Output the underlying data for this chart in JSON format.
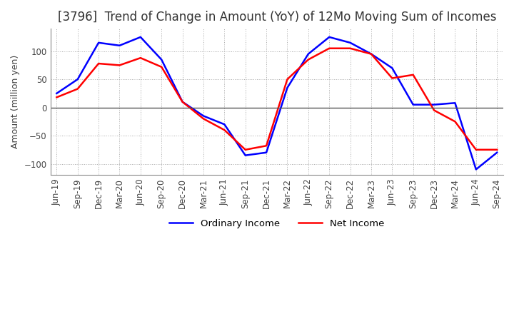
{
  "title": "[3796]  Trend of Change in Amount (YoY) of 12Mo Moving Sum of Incomes",
  "ylabel": "Amount (million yen)",
  "ylim": [
    -120,
    140
  ],
  "yticks": [
    -100,
    -50,
    0,
    50,
    100
  ],
  "ordinary_income_color": "#0000FF",
  "net_income_color": "#FF0000",
  "line_width": 1.8,
  "x_labels": [
    "Jun-19",
    "Sep-19",
    "Dec-19",
    "Mar-20",
    "Jun-20",
    "Sep-20",
    "Dec-20",
    "Mar-21",
    "Jun-21",
    "Sep-21",
    "Dec-21",
    "Mar-22",
    "Jun-22",
    "Sep-22",
    "Dec-22",
    "Mar-23",
    "Jun-23",
    "Sep-23",
    "Dec-23",
    "Mar-24",
    "Jun-24",
    "Sep-24"
  ],
  "ordinary_income": [
    25,
    50,
    115,
    110,
    125,
    85,
    10,
    -15,
    -30,
    -85,
    -80,
    35,
    95,
    125,
    115,
    95,
    70,
    5,
    5,
    8,
    -110,
    -80
  ],
  "net_income": [
    18,
    33,
    78,
    75,
    88,
    72,
    10,
    -20,
    -40,
    -75,
    -68,
    50,
    85,
    105,
    105,
    95,
    52,
    58,
    -5,
    -25,
    -75,
    -75
  ],
  "background_color": "#ffffff",
  "grid_color": "#aaaaaa",
  "title_fontsize": 12,
  "legend_fontsize": 9.5,
  "tick_fontsize": 8.5,
  "zero_line_color": "#555555"
}
